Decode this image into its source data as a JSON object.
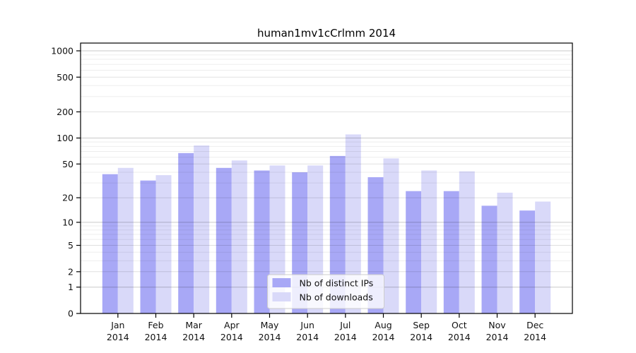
{
  "chart_data": {
    "type": "bar",
    "title": "human1mv1cCrlmm 2014",
    "categories": [
      "Jan",
      "Feb",
      "Mar",
      "Apr",
      "May",
      "Jun",
      "Jul",
      "Aug",
      "Sep",
      "Oct",
      "Nov",
      "Dec"
    ],
    "x_year_line": "2014",
    "series": [
      {
        "name": "Nb of distinct IPs",
        "color": "#a8a8f6",
        "values": [
          38,
          32,
          67,
          45,
          42,
          40,
          62,
          35,
          24,
          24,
          16,
          14
        ]
      },
      {
        "name": "Nb of downloads",
        "color": "#d9d9f9",
        "values": [
          45,
          37,
          82,
          55,
          48,
          48,
          110,
          58,
          42,
          41,
          23,
          18
        ]
      }
    ],
    "y_axis": {
      "scale": "log1p",
      "labeled_ticks": [
        0,
        1,
        2,
        5,
        10,
        20,
        50,
        100,
        200,
        500,
        1000
      ],
      "major_gridlines": [
        1,
        10,
        100,
        1000
      ],
      "minor_gridlines": [
        3,
        4,
        6,
        7,
        8,
        9,
        30,
        40,
        60,
        70,
        80,
        90,
        300,
        400,
        600,
        700,
        800,
        900
      ],
      "range_max": 1000
    },
    "legend": {
      "position": "inside-bottom-center",
      "entries": [
        "Nb of distinct IPs",
        "Nb of downloads"
      ]
    },
    "colors": {
      "axis": "#000000",
      "major_grid": "rgba(0,0,0,0.21)",
      "labeled_minor_grid": "rgba(0,0,0,0.12)",
      "minor_grid": "rgba(0,0,0,0.07)",
      "legend_border": "#cccccc",
      "legend_fill": "rgba(255,255,255,0.8)"
    },
    "grid": true
  }
}
